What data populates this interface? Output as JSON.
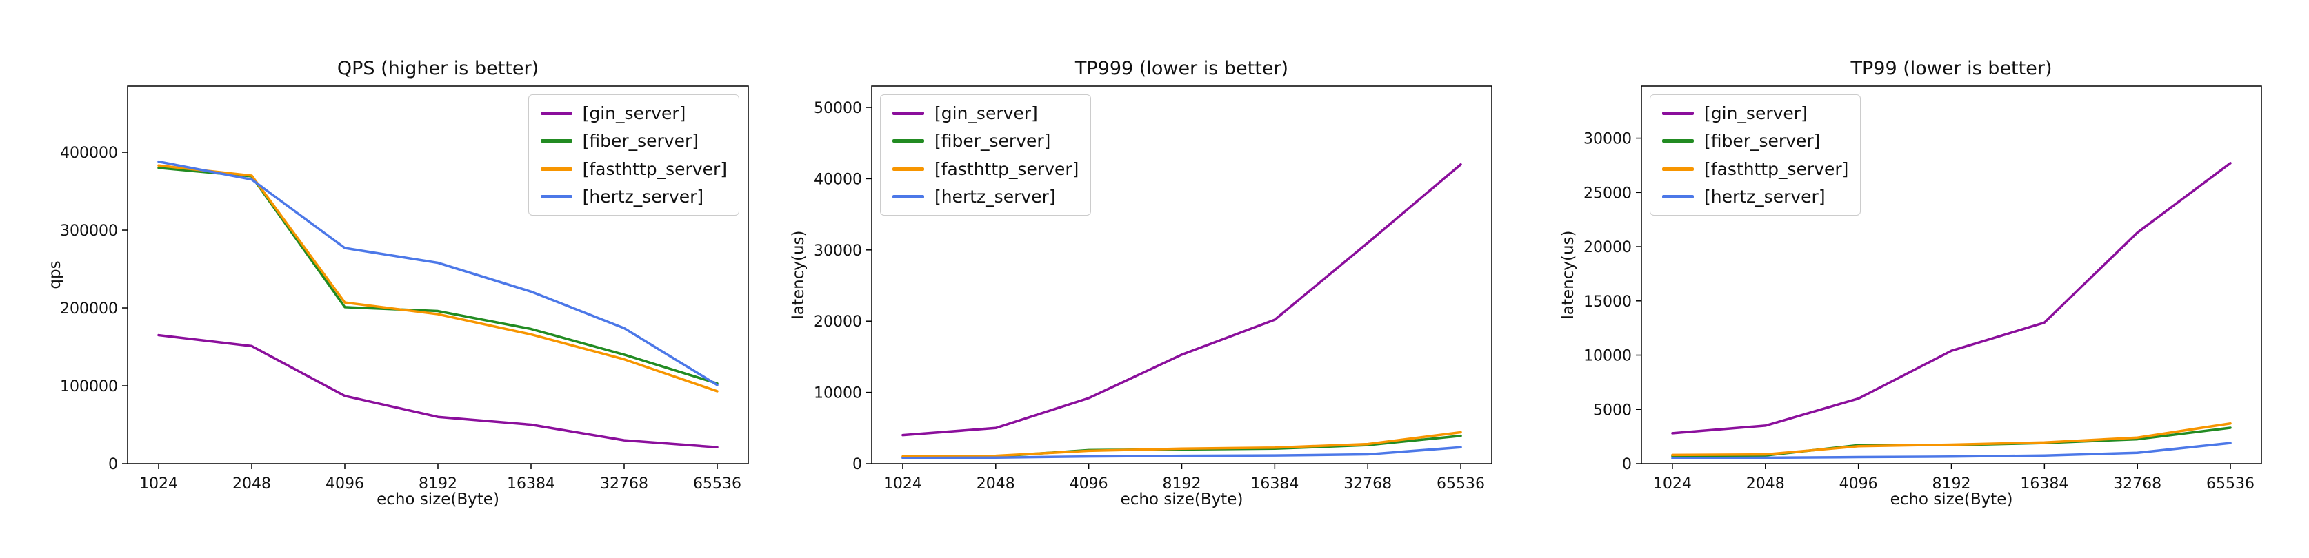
{
  "figure": {
    "background": "#ffffff",
    "text_color": "#111111",
    "axis_color": "#000000"
  },
  "chart_data": [
    {
      "type": "line",
      "title": "QPS (higher is better)",
      "xlabel": "echo size(Byte)",
      "ylabel": "qps",
      "categories": [
        "1024",
        "2048",
        "4096",
        "8192",
        "16384",
        "32768",
        "65536"
      ],
      "ylim": [
        0,
        485000
      ],
      "yticks": [
        0,
        100000,
        200000,
        300000,
        400000
      ],
      "grid": false,
      "legend_position": "upper-right",
      "series": [
        {
          "name": "[gin_server]",
          "color": "#8b0f9c",
          "values": [
            165000,
            151000,
            87000,
            60000,
            50000,
            30000,
            21000
          ]
        },
        {
          "name": "[fiber_server]",
          "color": "#228b22",
          "values": [
            380000,
            369000,
            201000,
            196000,
            173000,
            140000,
            103000
          ]
        },
        {
          "name": "[fasthttp_server]",
          "color": "#f79500",
          "values": [
            383000,
            370000,
            207000,
            192000,
            166000,
            134000,
            93000
          ]
        },
        {
          "name": "[hertz_server]",
          "color": "#4c78e8",
          "values": [
            388000,
            365000,
            277000,
            258000,
            221000,
            174000,
            101000
          ]
        }
      ]
    },
    {
      "type": "line",
      "title": "TP999 (lower is better)",
      "xlabel": "echo size(Byte)",
      "ylabel": "latency(us)",
      "categories": [
        "1024",
        "2048",
        "4096",
        "8192",
        "16384",
        "32768",
        "65536"
      ],
      "ylim": [
        0,
        53000
      ],
      "yticks": [
        0,
        10000,
        20000,
        30000,
        40000,
        50000
      ],
      "grid": false,
      "legend_position": "upper-left",
      "series": [
        {
          "name": "[gin_server]",
          "color": "#8b0f9c",
          "values": [
            4000,
            5000,
            9200,
            15300,
            20200,
            31000,
            42000
          ]
        },
        {
          "name": "[fiber_server]",
          "color": "#228b22",
          "values": [
            900,
            1000,
            1900,
            2000,
            2100,
            2600,
            3900
          ]
        },
        {
          "name": "[fasthttp_server]",
          "color": "#f79500",
          "values": [
            1000,
            1100,
            1800,
            2100,
            2250,
            2750,
            4400
          ]
        },
        {
          "name": "[hertz_server]",
          "color": "#4c78e8",
          "values": [
            800,
            850,
            1000,
            1100,
            1150,
            1300,
            2300
          ]
        }
      ]
    },
    {
      "type": "line",
      "title": "TP99 (lower is better)",
      "xlabel": "echo size(Byte)",
      "ylabel": "latency(us)",
      "categories": [
        "1024",
        "2048",
        "4096",
        "8192",
        "16384",
        "32768",
        "65536"
      ],
      "ylim": [
        0,
        34800
      ],
      "yticks": [
        0,
        5000,
        10000,
        15000,
        20000,
        25000,
        30000
      ],
      "grid": false,
      "legend_position": "upper-left",
      "series": [
        {
          "name": "[gin_server]",
          "color": "#8b0f9c",
          "values": [
            2800,
            3500,
            6000,
            10400,
            13000,
            21300,
            27700
          ]
        },
        {
          "name": "[fiber_server]",
          "color": "#228b22",
          "values": [
            700,
            750,
            1700,
            1700,
            1900,
            2250,
            3300
          ]
        },
        {
          "name": "[fasthttp_server]",
          "color": "#f79500",
          "values": [
            800,
            850,
            1600,
            1750,
            1950,
            2400,
            3700
          ]
        },
        {
          "name": "[hertz_server]",
          "color": "#4c78e8",
          "values": [
            500,
            550,
            600,
            650,
            750,
            1000,
            1900
          ]
        }
      ]
    }
  ]
}
